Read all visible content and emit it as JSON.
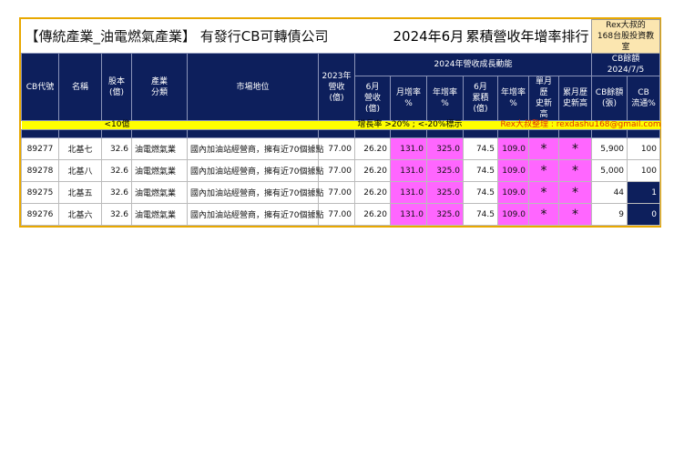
{
  "title": {
    "main": "【傳統產業_油電燃氣產業】 有發行CB可轉債公司",
    "date": "2024年6月",
    "subtitle": "累積營收年增率排行",
    "badge_line1": "Rex大叔的",
    "badge_line2": "168台股投資教室"
  },
  "headers": {
    "code": "CB代號",
    "name": "名稱",
    "capital": "股本\n(億)",
    "industry": "產業\n分類",
    "market": "市場地位",
    "rev2023": "2023年\n營收(億)",
    "group": "2024年營收成長動能",
    "cb_group": "CB餘額\n2024/7/5",
    "jun_rev": "6月\n營收(億)",
    "mom": "月增率\n%",
    "yoy": "年增率\n%",
    "jun_cum": "6月\n累積(億)",
    "cum_yoy": "年增率\n%",
    "month_high": "單月歷\n史新高",
    "cum_high": "累月歷\n史新高",
    "cb_balance": "CB餘額\n(張)",
    "cb_float": "CB\n流通%"
  },
  "notes": {
    "capital": "<10億",
    "growth": "增長率 >20% ; <-20%標示",
    "author": "Rex大叔整理 : rexdashu168@gmail.com"
  },
  "colors": {
    "header": "#0d1f5c",
    "highlight": "#ff66ff",
    "note": "#ffff00",
    "border": "#e8a800"
  },
  "rows": [
    {
      "code": "89277",
      "name": "北基七",
      "capital": "32.6",
      "industry": "油電燃氣業",
      "market": "國內加油站經營商，擁有近70個據點",
      "rev2023": "77.00",
      "jun_rev": "26.20",
      "mom": "131.0",
      "yoy": "325.0",
      "jun_cum": "74.5",
      "cum_yoy": "109.0",
      "month_high": "*",
      "cum_high": "*",
      "cb_balance": "5,900",
      "cb_float": "100"
    },
    {
      "code": "89278",
      "name": "北基八",
      "capital": "32.6",
      "industry": "油電燃氣業",
      "market": "國內加油站經營商，擁有近70個據點",
      "rev2023": "77.00",
      "jun_rev": "26.20",
      "mom": "131.0",
      "yoy": "325.0",
      "jun_cum": "74.5",
      "cum_yoy": "109.0",
      "month_high": "*",
      "cum_high": "*",
      "cb_balance": "5,000",
      "cb_float": "100"
    },
    {
      "code": "89275",
      "name": "北基五",
      "capital": "32.6",
      "industry": "油電燃氣業",
      "market": "國內加油站經營商，擁有近70個據點",
      "rev2023": "77.00",
      "jun_rev": "26.20",
      "mom": "131.0",
      "yoy": "325.0",
      "jun_cum": "74.5",
      "cum_yoy": "109.0",
      "month_high": "*",
      "cum_high": "*",
      "cb_balance": "44",
      "cb_float": "1"
    },
    {
      "code": "89276",
      "name": "北基六",
      "capital": "32.6",
      "industry": "油電燃氣業",
      "market": "國內加油站經營商，擁有近70個據點",
      "rev2023": "77.00",
      "jun_rev": "26.20",
      "mom": "131.0",
      "yoy": "325.0",
      "jun_cum": "74.5",
      "cum_yoy": "109.0",
      "month_high": "*",
      "cum_high": "*",
      "cb_balance": "9",
      "cb_float": "0"
    }
  ]
}
